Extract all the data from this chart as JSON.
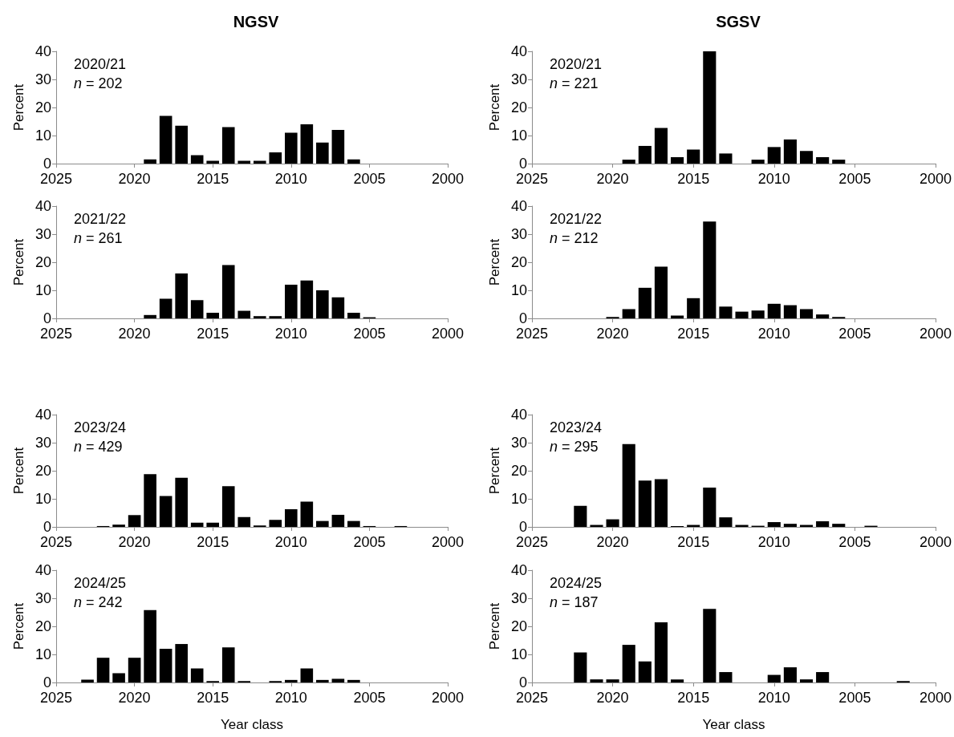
{
  "chart_data": [
    {
      "type": "bar",
      "title": "NGSV",
      "ylabel": "Percent",
      "annotations": [
        "2020/21",
        "n = 202"
      ],
      "color": "#000000",
      "xlim": [
        2025,
        2000
      ],
      "xticks": [
        2025,
        2020,
        2015,
        2010,
        2005,
        2000
      ],
      "ylim": [
        0,
        40
      ],
      "yticks": [
        0,
        10,
        20,
        30,
        40
      ],
      "x": [
        2019,
        2018,
        2017,
        2016,
        2015,
        2014,
        2013,
        2012,
        2011,
        2010,
        2009,
        2008,
        2007,
        2006
      ],
      "values": [
        1.5,
        17,
        13.5,
        3,
        1,
        13,
        1,
        1,
        4,
        11,
        14,
        7.5,
        12,
        1.5
      ]
    },
    {
      "type": "bar",
      "title": "SGSV",
      "ylabel": "Percent",
      "annotations": [
        "2020/21",
        "n = 221"
      ],
      "color": "#000000",
      "xlim": [
        2025,
        2000
      ],
      "xticks": [
        2025,
        2020,
        2015,
        2010,
        2005,
        2000
      ],
      "ylim": [
        0,
        40
      ],
      "yticks": [
        0,
        10,
        20,
        30,
        40
      ],
      "x": [
        2019,
        2018,
        2017,
        2016,
        2015,
        2014,
        2013,
        2011,
        2010,
        2009,
        2008,
        2007,
        2006
      ],
      "values": [
        1.4,
        6.3,
        12.7,
        2.3,
        5,
        40,
        3.6,
        1.4,
        5.9,
        8.6,
        4.5,
        2.3,
        1.4
      ]
    },
    {
      "type": "bar",
      "ylabel": "Percent",
      "annotations": [
        "2021/22",
        "n = 261"
      ],
      "color": "#000000",
      "xlim": [
        2025,
        2000
      ],
      "xticks": [
        2025,
        2020,
        2015,
        2010,
        2005,
        2000
      ],
      "ylim": [
        0,
        40
      ],
      "yticks": [
        0,
        10,
        20,
        30,
        40
      ],
      "x": [
        2019,
        2018,
        2017,
        2016,
        2015,
        2014,
        2013,
        2012,
        2011,
        2010,
        2009,
        2008,
        2007,
        2006,
        2005
      ],
      "values": [
        1.2,
        7,
        16,
        6.5,
        2,
        19,
        2.7,
        0.8,
        0.8,
        12,
        13.5,
        10,
        7.5,
        2,
        0.4
      ]
    },
    {
      "type": "bar",
      "ylabel": "Percent",
      "annotations": [
        "2021/22",
        "n = 212"
      ],
      "color": "#000000",
      "xlim": [
        2025,
        2000
      ],
      "xticks": [
        2025,
        2020,
        2015,
        2010,
        2005,
        2000
      ],
      "ylim": [
        0,
        40
      ],
      "yticks": [
        0,
        10,
        20,
        30,
        40
      ],
      "x": [
        2020,
        2019,
        2018,
        2017,
        2016,
        2015,
        2014,
        2013,
        2012,
        2011,
        2010,
        2009,
        2008,
        2007,
        2006
      ],
      "values": [
        0.5,
        3.3,
        10.9,
        18.4,
        1,
        7.2,
        34.5,
        4.2,
        2.4,
        2.8,
        5.2,
        4.7,
        3.3,
        1.4,
        0.5
      ]
    },
    {
      "type": "bar",
      "ylabel": "Percent",
      "annotations": [
        "2023/24",
        "n = 429"
      ],
      "color": "#000000",
      "xlim": [
        2025,
        2000
      ],
      "xticks": [
        2025,
        2020,
        2015,
        2010,
        2005,
        2000
      ],
      "ylim": [
        0,
        40
      ],
      "yticks": [
        0,
        10,
        20,
        30,
        40
      ],
      "x": [
        2022,
        2021,
        2020,
        2019,
        2018,
        2017,
        2016,
        2015,
        2014,
        2013,
        2012,
        2011,
        2010,
        2009,
        2008,
        2007,
        2006,
        2005,
        2003
      ],
      "values": [
        0.3,
        0.8,
        4.2,
        18.8,
        11,
        17.5,
        1.5,
        1.5,
        14.5,
        3.5,
        0.5,
        2.5,
        6.3,
        9,
        2.1,
        4.3,
        2.1,
        0.3,
        0.3
      ]
    },
    {
      "type": "bar",
      "ylabel": "Percent",
      "annotations": [
        "2023/24",
        "n = 295"
      ],
      "color": "#000000",
      "xlim": [
        2025,
        2000
      ],
      "xticks": [
        2025,
        2020,
        2015,
        2010,
        2005,
        2000
      ],
      "ylim": [
        0,
        40
      ],
      "yticks": [
        0,
        10,
        20,
        30,
        40
      ],
      "x": [
        2022,
        2021,
        2020,
        2019,
        2018,
        2017,
        2016,
        2015,
        2014,
        2013,
        2012,
        2011,
        2010,
        2009,
        2008,
        2007,
        2006,
        2004
      ],
      "values": [
        7.5,
        0.7,
        2.7,
        29.5,
        16.5,
        17,
        0.3,
        0.7,
        14,
        3.4,
        0.7,
        0.4,
        1.7,
        1.1,
        0.7,
        2,
        1.1,
        0.4
      ]
    },
    {
      "type": "bar",
      "ylabel": "Percent",
      "xlabel": "Year class",
      "annotations": [
        "2024/25",
        "n = 242"
      ],
      "color": "#000000",
      "xlim": [
        2025,
        2000
      ],
      "xticks": [
        2025,
        2020,
        2015,
        2010,
        2005,
        2000
      ],
      "ylim": [
        0,
        40
      ],
      "yticks": [
        0,
        10,
        20,
        30,
        40
      ],
      "x": [
        2023,
        2022,
        2021,
        2020,
        2019,
        2018,
        2017,
        2016,
        2015,
        2014,
        2013,
        2011,
        2010,
        2009,
        2008,
        2007,
        2006
      ],
      "values": [
        1,
        8.8,
        3.3,
        8.8,
        25.8,
        12,
        13.7,
        5,
        0.5,
        12.5,
        0.5,
        0.5,
        0.9,
        5,
        0.9,
        1.3,
        0.9
      ]
    },
    {
      "type": "bar",
      "ylabel": "Percent",
      "xlabel": "Year class",
      "annotations": [
        "2024/25",
        "n = 187"
      ],
      "color": "#000000",
      "xlim": [
        2025,
        2000
      ],
      "xticks": [
        2025,
        2020,
        2015,
        2010,
        2005,
        2000
      ],
      "ylim": [
        0,
        40
      ],
      "yticks": [
        0,
        10,
        20,
        30,
        40
      ],
      "x": [
        2022,
        2021,
        2020,
        2019,
        2018,
        2017,
        2016,
        2014,
        2013,
        2010,
        2009,
        2008,
        2007,
        2002
      ],
      "values": [
        10.7,
        1.1,
        1.1,
        13.4,
        7.5,
        21.4,
        1.1,
        26.2,
        3.7,
        2.7,
        5.4,
        1.1,
        3.7,
        0.5
      ]
    }
  ]
}
